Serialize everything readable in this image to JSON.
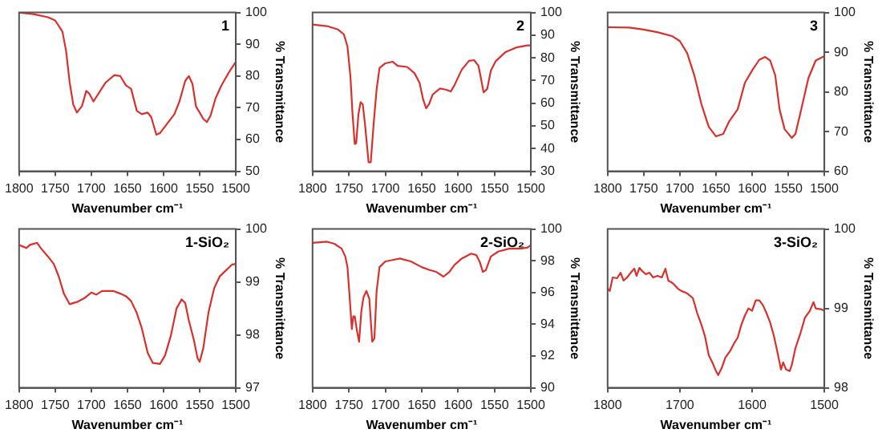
{
  "chart_data": [
    {
      "type": "line",
      "title": "1",
      "xlabel": "Wavenumber cm⁻¹",
      "ylabel": "% Transmittance",
      "xlim": [
        1800,
        1500
      ],
      "xticks": [
        1800,
        1750,
        1700,
        1650,
        1600,
        1550,
        1500
      ],
      "ylim": [
        50,
        100
      ],
      "yticks": [
        50,
        60,
        70,
        80,
        90,
        100
      ],
      "grid": false,
      "marker": "none",
      "line_style": "solid",
      "x": [
        1800,
        1780,
        1760,
        1750,
        1740,
        1735,
        1730,
        1725,
        1720,
        1713,
        1707,
        1703,
        1697,
        1690,
        1680,
        1668,
        1660,
        1652,
        1645,
        1637,
        1630,
        1622,
        1617,
        1610,
        1605,
        1595,
        1585,
        1578,
        1570,
        1565,
        1560,
        1555,
        1550,
        1545,
        1540,
        1535,
        1528,
        1520,
        1510,
        1500
      ],
      "series": [
        {
          "color": "#d9302c",
          "values": [
            100,
            99.5,
            98.5,
            97.5,
            94,
            88,
            78,
            71,
            68.5,
            70.5,
            75.3,
            74.5,
            72,
            74.5,
            78,
            80.3,
            80,
            77,
            76,
            69,
            68,
            68.5,
            67,
            61.5,
            62,
            65,
            68,
            72,
            78.5,
            80,
            77.5,
            70.3,
            68.5,
            66.5,
            65.5,
            67.5,
            73,
            77,
            81,
            84.5
          ]
        }
      ]
    },
    {
      "type": "line",
      "title": "2",
      "xlabel": "Wavenumber cm⁻¹",
      "ylabel": "% Transmittance",
      "xlim": [
        1800,
        1500
      ],
      "xticks": [
        1800,
        1750,
        1700,
        1650,
        1600,
        1550,
        1500
      ],
      "ylim": [
        30,
        100
      ],
      "yticks": [
        30,
        40,
        50,
        60,
        70,
        80,
        90,
        100
      ],
      "grid": false,
      "marker": "none",
      "line_style": "solid",
      "x": [
        1800,
        1780,
        1765,
        1757,
        1752,
        1748,
        1745,
        1742,
        1740,
        1737,
        1734,
        1731,
        1728,
        1723,
        1720,
        1716,
        1712,
        1708,
        1700,
        1690,
        1683,
        1670,
        1660,
        1653,
        1648,
        1644,
        1640,
        1635,
        1625,
        1617,
        1610,
        1605,
        1595,
        1585,
        1578,
        1572,
        1568,
        1565,
        1560,
        1555,
        1548,
        1535,
        1520,
        1505,
        1500
      ],
      "series": [
        {
          "color": "#d9302c",
          "values": [
            94.7,
            94,
            92.5,
            90.4,
            85,
            72,
            55,
            42,
            42.4,
            55,
            60.5,
            59.5,
            51,
            34,
            34,
            51,
            66,
            75.5,
            77.6,
            78.3,
            76.5,
            76,
            73.3,
            69,
            61.6,
            57.8,
            59.5,
            63.8,
            66.5,
            66,
            65.2,
            68,
            74.8,
            78.7,
            79,
            76.5,
            70,
            64.8,
            66.3,
            74.4,
            78.7,
            82.5,
            84.6,
            85.5,
            85.5
          ]
        }
      ]
    },
    {
      "type": "line",
      "title": "3",
      "xlabel": "Wavenumber cm⁻¹",
      "ylabel": "% Transmittance",
      "xlim": [
        1800,
        1500
      ],
      "xticks": [
        1800,
        1750,
        1700,
        1650,
        1600,
        1550,
        1500
      ],
      "ylim": [
        60,
        100
      ],
      "yticks": [
        60,
        70,
        80,
        90,
        100
      ],
      "grid": false,
      "marker": "none",
      "line_style": "solid",
      "x": [
        1800,
        1770,
        1750,
        1730,
        1710,
        1700,
        1690,
        1680,
        1670,
        1660,
        1650,
        1640,
        1632,
        1620,
        1610,
        1600,
        1590,
        1582,
        1575,
        1568,
        1562,
        1555,
        1545,
        1540,
        1532,
        1522,
        1512,
        1500
      ],
      "series": [
        {
          "color": "#d9302c",
          "values": [
            96.3,
            96.2,
            95.7,
            95,
            94,
            92.8,
            89.8,
            84.2,
            76.8,
            71.2,
            68.8,
            69.4,
            72.5,
            75.6,
            82.3,
            85.4,
            88.1,
            88.8,
            87.9,
            84.2,
            75.6,
            70.6,
            68.4,
            69.4,
            75.6,
            83.5,
            87.9,
            89
          ]
        }
      ]
    },
    {
      "type": "line",
      "title": "1-SiO₂",
      "xlabel": "Wavenumber cm⁻¹",
      "ylabel": "% Transmittance",
      "xlim": [
        1800,
        1500
      ],
      "xticks": [
        1800,
        1750,
        1700,
        1650,
        1600,
        1550,
        1500
      ],
      "ylim": [
        97,
        100
      ],
      "yticks": [
        97,
        98,
        99,
        100
      ],
      "grid": false,
      "marker": "none",
      "line_style": "solid",
      "x": [
        1800,
        1795,
        1790,
        1785,
        1780,
        1775,
        1770,
        1760,
        1752,
        1745,
        1738,
        1730,
        1720,
        1710,
        1700,
        1693,
        1685,
        1670,
        1660,
        1652,
        1645,
        1637,
        1630,
        1622,
        1615,
        1605,
        1598,
        1590,
        1582,
        1575,
        1570,
        1565,
        1558,
        1553,
        1550,
        1545,
        1538,
        1530,
        1522,
        1515,
        1505,
        1500
      ],
      "series": [
        {
          "color": "#d9302c",
          "values": [
            99.7,
            99.67,
            99.64,
            99.7,
            99.72,
            99.74,
            99.64,
            99.48,
            99.34,
            99.1,
            98.78,
            98.58,
            98.62,
            98.69,
            98.8,
            98.76,
            98.83,
            98.83,
            98.78,
            98.73,
            98.64,
            98.41,
            98.12,
            97.66,
            97.47,
            97.45,
            97.61,
            97.98,
            98.5,
            98.67,
            98.6,
            98.27,
            97.9,
            97.56,
            97.49,
            97.75,
            98.41,
            98.88,
            99.11,
            99.2,
            99.33,
            99.34
          ]
        }
      ]
    },
    {
      "type": "line",
      "title": "2-SiO₂",
      "xlabel": "Wavenumber cm⁻¹",
      "ylabel": "% Transmittance",
      "xlim": [
        1800,
        1500
      ],
      "xticks": [
        1800,
        1750,
        1700,
        1650,
        1600,
        1550,
        1500
      ],
      "ylim": [
        90,
        100
      ],
      "yticks": [
        90,
        92,
        94,
        96,
        98,
        100
      ],
      "grid": false,
      "marker": "none",
      "line_style": "solid",
      "x": [
        1800,
        1780,
        1770,
        1760,
        1755,
        1752,
        1749,
        1746,
        1744,
        1742,
        1739,
        1736,
        1733,
        1730,
        1726,
        1722,
        1718,
        1715,
        1712,
        1708,
        1700,
        1690,
        1680,
        1665,
        1650,
        1640,
        1630,
        1620,
        1612,
        1605,
        1595,
        1582,
        1575,
        1570,
        1566,
        1562,
        1555,
        1545,
        1530,
        1515,
        1505,
        1500
      ],
      "series": [
        {
          "color": "#d9302c",
          "values": [
            99.13,
            99.2,
            99.07,
            98.76,
            98.27,
            97.6,
            95.7,
            93.7,
            94.5,
            94.5,
            93.6,
            92.9,
            94.8,
            95.7,
            96.1,
            95.6,
            92.9,
            93.1,
            96.07,
            97.6,
            97.96,
            98.05,
            98.14,
            97.96,
            97.6,
            97.43,
            97.3,
            97,
            97.3,
            97.74,
            98.14,
            98.45,
            98.36,
            97.9,
            97.3,
            97.4,
            98.27,
            98.58,
            98.76,
            98.76,
            98.82,
            98.98
          ]
        }
      ]
    },
    {
      "type": "line",
      "title": "3-SiO₂",
      "xlabel": "Wavenumber cm⁻¹",
      "ylabel": "% Transmittance",
      "xlim": [
        1800,
        1500
      ],
      "xticks": [
        1800,
        1700,
        1600,
        1500
      ],
      "ylim": [
        98,
        100
      ],
      "yticks": [
        98,
        99,
        100
      ],
      "grid": false,
      "marker": "none",
      "line_style": "solid",
      "x": [
        1800,
        1797,
        1793,
        1787,
        1782,
        1778,
        1773,
        1768,
        1763,
        1760,
        1756,
        1752,
        1747,
        1742,
        1737,
        1731,
        1725,
        1720,
        1716,
        1710,
        1703,
        1698,
        1690,
        1682,
        1676,
        1670,
        1665,
        1660,
        1655,
        1650,
        1647,
        1642,
        1637,
        1630,
        1625,
        1620,
        1615,
        1610,
        1605,
        1600,
        1595,
        1590,
        1585,
        1580,
        1575,
        1570,
        1565,
        1560,
        1557,
        1553,
        1548,
        1545,
        1540,
        1533,
        1527,
        1520,
        1515,
        1512,
        1505,
        1500
      ],
      "series": [
        {
          "color": "#d9302c",
          "values": [
            99.25,
            99.22,
            99.39,
            99.38,
            99.45,
            99.35,
            99.39,
            99.45,
            99.5,
            99.41,
            99.51,
            99.47,
            99.43,
            99.45,
            99.39,
            99.41,
            99.39,
            99.5,
            99.35,
            99.32,
            99.25,
            99.22,
            99.19,
            99.13,
            98.94,
            98.79,
            98.64,
            98.41,
            98.32,
            98.21,
            98.16,
            98.25,
            98.38,
            98.47,
            98.56,
            98.63,
            98.79,
            98.91,
            99,
            98.97,
            99.1,
            99.1,
            99.04,
            98.94,
            98.82,
            98.66,
            98.45,
            98.23,
            98.32,
            98.23,
            98.21,
            98.29,
            98.5,
            98.69,
            98.88,
            98.97,
            99.08,
            99,
            98.99,
            98.97
          ]
        }
      ]
    }
  ]
}
